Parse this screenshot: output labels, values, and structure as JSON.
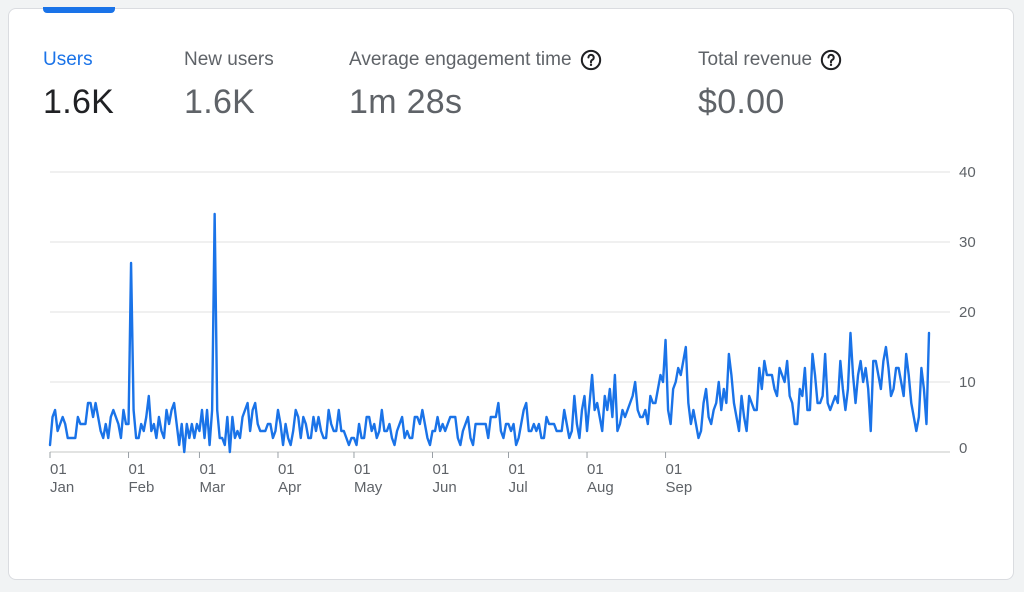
{
  "metrics": [
    {
      "label": "Users",
      "value": "1.6K"
    },
    {
      "label": "New users",
      "value": "1.6K"
    },
    {
      "label": "Average engagement time",
      "value": "1m 28s"
    },
    {
      "label": "Total revenue",
      "value": "$0.00"
    }
  ],
  "colors": {
    "accent": "#1a73e8",
    "line": "#1a73e8",
    "grid": "#e0e0e0",
    "text_muted": "#5f6368",
    "text_dark": "#202124"
  },
  "chart_data": {
    "type": "line",
    "title": "",
    "xlabel": "",
    "ylabel": "",
    "ylim": [
      0,
      40
    ],
    "yticks": [
      0,
      10,
      20,
      30,
      40
    ],
    "grid": true,
    "legend": "none",
    "x_ticks": [
      {
        "day": "01",
        "month": "Jan",
        "index": 0
      },
      {
        "day": "01",
        "month": "Feb",
        "index": 31
      },
      {
        "day": "01",
        "month": "Mar",
        "index": 59
      },
      {
        "day": "01",
        "month": "Apr",
        "index": 90
      },
      {
        "day": "01",
        "month": "May",
        "index": 120
      },
      {
        "day": "01",
        "month": "Jun",
        "index": 151
      },
      {
        "day": "01",
        "month": "Jul",
        "index": 181
      },
      {
        "day": "01",
        "month": "Aug",
        "index": 212
      },
      {
        "day": "01",
        "month": "Sep",
        "index": 243
      }
    ],
    "series": [
      {
        "values": [
          1,
          5,
          6,
          3,
          4,
          5,
          4,
          2,
          2,
          2,
          2,
          5,
          4,
          4,
          4,
          7,
          7,
          5,
          7,
          5,
          3,
          2,
          4,
          2,
          5,
          6,
          5,
          4,
          2,
          6,
          4,
          4,
          27,
          6,
          2,
          2,
          4,
          3,
          5,
          8,
          3,
          4,
          2,
          5,
          3,
          2,
          6,
          4,
          6,
          7,
          4,
          1,
          4,
          0,
          4,
          2,
          4,
          2,
          4,
          3,
          6,
          2,
          6,
          1,
          6,
          34,
          6,
          2,
          2,
          1,
          5,
          0,
          5,
          2,
          3,
          2,
          5,
          6,
          7,
          3,
          6,
          7,
          4,
          3,
          3,
          3,
          4,
          4,
          2,
          3,
          6,
          4,
          1,
          4,
          2,
          1,
          3,
          6,
          5,
          2,
          5,
          4,
          2,
          2,
          5,
          3,
          5,
          3,
          2,
          2,
          6,
          4,
          3,
          3,
          6,
          3,
          3,
          2,
          1,
          2,
          2,
          1,
          4,
          2,
          2,
          5,
          5,
          3,
          4,
          2,
          3,
          6,
          3,
          3,
          4,
          2,
          1,
          3,
          4,
          5,
          2,
          3,
          2,
          2,
          5,
          5,
          4,
          6,
          4,
          2,
          1,
          3,
          3,
          5,
          3,
          4,
          3,
          4,
          5,
          5,
          5,
          2,
          1,
          3,
          4,
          5,
          2,
          1,
          4,
          4,
          4,
          4,
          4,
          2,
          5,
          5,
          5,
          7,
          3,
          2,
          4,
          4,
          3,
          4,
          1,
          2,
          4,
          6,
          7,
          3,
          3,
          4,
          3,
          4,
          2,
          2,
          5,
          4,
          4,
          4,
          3,
          3,
          3,
          6,
          4,
          2,
          3,
          8,
          4,
          2,
          6,
          8,
          3,
          7,
          11,
          6,
          7,
          5,
          3,
          8,
          6,
          9,
          5,
          11,
          3,
          4,
          6,
          5,
          6,
          7,
          8,
          10,
          6,
          5,
          5,
          6,
          4,
          8,
          7,
          7,
          9,
          11,
          10,
          16,
          6,
          4,
          9,
          10,
          12,
          11,
          13,
          15,
          7,
          4,
          6,
          4,
          2,
          3,
          7,
          9,
          5,
          4,
          6,
          7,
          10,
          6,
          9,
          7,
          14,
          11,
          7,
          5,
          3,
          8,
          5,
          3,
          8,
          7,
          6,
          6,
          12,
          9,
          13,
          11,
          11,
          11,
          9,
          8,
          12,
          11,
          10,
          13,
          8,
          7,
          4,
          4,
          9,
          8,
          12,
          6,
          6,
          14,
          11,
          7,
          7,
          8,
          14,
          7,
          6,
          7,
          8,
          7,
          13,
          9,
          6,
          9,
          17,
          11,
          7,
          11,
          13,
          10,
          12,
          9,
          3,
          13,
          13,
          11,
          9,
          13,
          15,
          12,
          8,
          9,
          12,
          12,
          10,
          8,
          14,
          11,
          7,
          5,
          3,
          5,
          12,
          9,
          4,
          17
        ]
      }
    ]
  }
}
